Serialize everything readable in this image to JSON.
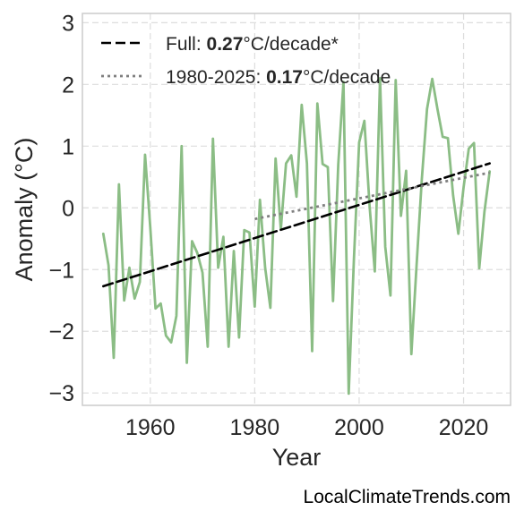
{
  "chart_data": {
    "type": "line",
    "xlabel": "Year",
    "ylabel": "Anomaly (°C)",
    "xlim": [
      1947,
      2029
    ],
    "ylim": [
      -3.2,
      3.15
    ],
    "xticks": [
      1960,
      1980,
      2000,
      2020
    ],
    "yticks": [
      -3,
      -2,
      -1,
      0,
      1,
      2,
      3
    ],
    "ytick_labels": [
      "−3",
      "−2",
      "−1",
      "0",
      "1",
      "2",
      "3"
    ],
    "grid": true,
    "legend_position": "upper-left",
    "series": [
      {
        "color": "#8bbd85",
        "style": "solid",
        "x": [
          1951,
          1952,
          1953,
          1954,
          1955,
          1956,
          1957,
          1958,
          1959,
          1960,
          1961,
          1962,
          1963,
          1964,
          1965,
          1966,
          1967,
          1968,
          1969,
          1970,
          1971,
          1972,
          1973,
          1974,
          1975,
          1976,
          1977,
          1978,
          1979,
          1980,
          1981,
          1982,
          1983,
          1984,
          1985,
          1986,
          1987,
          1988,
          1989,
          1990,
          1991,
          1992,
          1993,
          1994,
          1995,
          1996,
          1997,
          1998,
          1999,
          2000,
          2001,
          2002,
          2003,
          2004,
          2005,
          2006,
          2007,
          2008,
          2009,
          2010,
          2011,
          2012,
          2013,
          2014,
          2015,
          2016,
          2017,
          2018,
          2019,
          2020,
          2021,
          2022,
          2023,
          2024,
          2025
        ],
        "values": [
          -0.42,
          -0.93,
          -2.43,
          0.38,
          -1.5,
          -0.97,
          -1.47,
          -1.2,
          0.86,
          -0.32,
          -1.63,
          -1.55,
          -2.07,
          -2.18,
          -1.75,
          1.0,
          -2.51,
          -0.54,
          -0.73,
          -1.05,
          -2.25,
          1.12,
          -0.97,
          -0.47,
          -2.25,
          -0.7,
          -2.1,
          -0.36,
          -0.4,
          -1.6,
          0.13,
          -0.97,
          -1.62,
          0.8,
          -0.35,
          0.72,
          0.85,
          0.18,
          1.67,
          0.72,
          -2.32,
          1.69,
          0.71,
          0.66,
          -1.51,
          0.7,
          2.04,
          -3.01,
          -0.83,
          1.06,
          1.41,
          0.03,
          -1.03,
          2.1,
          -0.63,
          -1.42,
          2.07,
          -0.13,
          0.6,
          -2.37,
          -0.93,
          0.46,
          1.6,
          2.09,
          1.6,
          1.15,
          1.13,
          0.2,
          -0.42,
          0.33,
          0.96,
          1.05,
          -0.98,
          -0.06,
          0.59
        ]
      },
      {
        "label": "Full",
        "trend_value": "0.27",
        "unit_suffix": "°C/decade*",
        "color": "#000000",
        "style": "dashed",
        "x": [
          1951,
          2025
        ],
        "values": [
          -1.27,
          0.72
        ]
      },
      {
        "label": "1980-2025",
        "trend_value": "0.17",
        "unit_suffix": "°C/decade",
        "color": "#808080",
        "style": "dotted",
        "x": [
          1980,
          2025
        ],
        "values": [
          -0.18,
          0.57
        ]
      }
    ]
  },
  "footer": {
    "source": "LocalClimateTrends.com"
  }
}
